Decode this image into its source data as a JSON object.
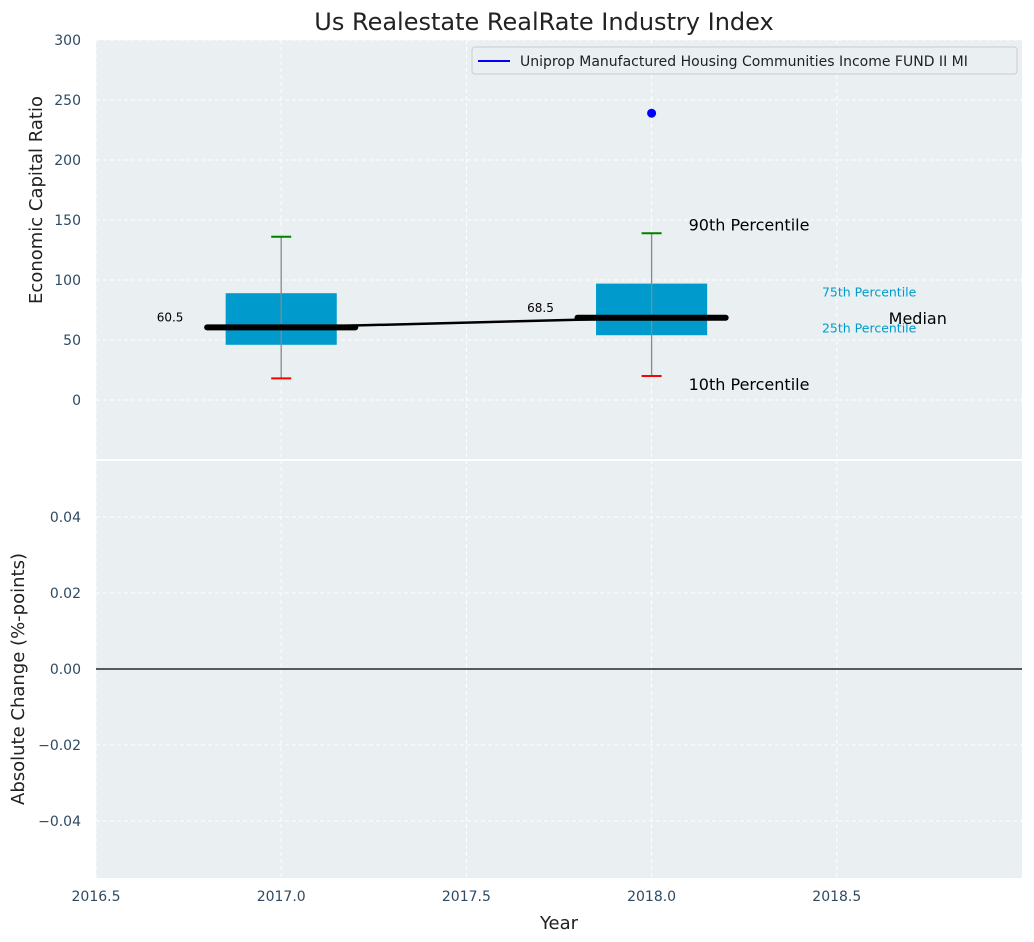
{
  "title": "Us Realestate RealRate Industry Index",
  "colors": {
    "plot_bg": "#eaeff1",
    "grid": "#ffffff",
    "tick_text": "#2e4a62",
    "box": "#009bcc",
    "median": "#000000",
    "whisker": "#888888",
    "p90": "#008000",
    "p10": "#ff0000",
    "company": "#0000ff",
    "zero_line": "#000000"
  },
  "chart_data": [
    {
      "type": "box",
      "ylabel": "Economic Capital Ratio",
      "ylim": [
        -50,
        300
      ],
      "yticks": [
        0,
        50,
        100,
        150,
        200,
        250,
        300
      ],
      "xlim": [
        2016.5,
        2019.0
      ],
      "grid": true,
      "legend": {
        "position": "top-right",
        "entries": [
          "Uniprop Manufactured Housing Communities Income FUND II MI"
        ]
      },
      "boxes": [
        {
          "x": 2017.0,
          "p10": 18,
          "p25": 46,
          "median": 60.5,
          "p75": 89,
          "p90": 136,
          "median_label": "60.5"
        },
        {
          "x": 2018.0,
          "p10": 20,
          "p25": 54,
          "median": 68.5,
          "p75": 97,
          "p90": 139,
          "median_label": "68.5"
        }
      ],
      "company_series": {
        "name": "Uniprop Manufactured Housing Communities Income FUND II MI",
        "x": [
          2018.0
        ],
        "y": [
          239
        ]
      },
      "annotations": {
        "p90": "90th Percentile",
        "p75": "75th Percentile",
        "median": "Median",
        "p25": "25th Percentile",
        "p10": "10th Percentile"
      }
    },
    {
      "type": "line",
      "xlabel": "Year",
      "ylabel": "Absolute Change (%-points)",
      "ylim": [
        -0.055,
        0.055
      ],
      "yticks": [
        -0.04,
        -0.02,
        0.0,
        0.02,
        0.04
      ],
      "ytick_labels": [
        "−0.04",
        "−0.02",
        "0.00",
        "0.02",
        "0.04"
      ],
      "xlim": [
        2016.5,
        2019.0
      ],
      "xticks": [
        2016.5,
        2017.0,
        2017.5,
        2018.0,
        2018.5
      ],
      "xtick_labels": [
        "2016.5",
        "2017.0",
        "2017.5",
        "2018.0",
        "2018.5"
      ],
      "zero_line": 0.0,
      "grid": true
    }
  ]
}
